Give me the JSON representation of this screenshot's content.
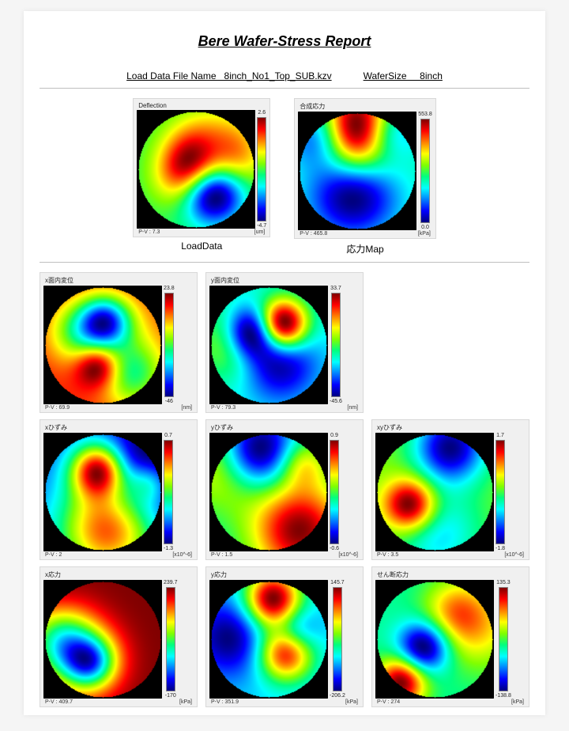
{
  "report_title": "Bere Wafer-Stress Report",
  "meta": {
    "file_label": "Load Data File Name   8inch_No1_Top_SUB.kzv",
    "size_label": "WaferSize     8inch"
  },
  "colormap": {
    "stops": [
      "#000080",
      "#0000ff",
      "#0080ff",
      "#00ffff",
      "#00ff80",
      "#80ff00",
      "#ffff00",
      "#ff8000",
      "#ff0000",
      "#800000"
    ]
  },
  "top": [
    {
      "title": "Deflection",
      "caption": "LoadData",
      "pv": "P-V : 7.3",
      "unit": "[um]",
      "cb_max": "2.6",
      "cb_min": "-4.7",
      "map_size": 150,
      "cb_height": 130,
      "seed": 11
    },
    {
      "title": "合成応力",
      "caption": "応力Map",
      "pv": "P-V : 465.8",
      "unit": "[kPa]",
      "cb_max": "553.8",
      "cb_min": "0.0",
      "map_size": 150,
      "cb_height": 130,
      "seed": 23
    }
  ],
  "grid": [
    {
      "title": "x面内変位",
      "pv": "P-V : 69.9",
      "unit": "[nm]",
      "cb_max": "23.8",
      "cb_min": "-46",
      "seed": 31
    },
    {
      "title": "y面内変位",
      "pv": "P-V : 79.3",
      "unit": "[nm]",
      "cb_max": "33.7",
      "cb_min": "-45.6",
      "seed": 37
    },
    null,
    {
      "title": "xひずみ",
      "pv": "P-V : 2",
      "unit": "[x10^-6]",
      "cb_max": "0.7",
      "cb_min": "-1.3",
      "seed": 41
    },
    {
      "title": "yひずみ",
      "pv": "P-V : 1.5",
      "unit": "[x10^-6]",
      "cb_max": "0.9",
      "cb_min": "-0.6",
      "seed": 43
    },
    {
      "title": "xyひずみ",
      "pv": "P-V : 3.5",
      "unit": "[x10^-6]",
      "cb_max": "1.7",
      "cb_min": "-1.8",
      "seed": 47
    },
    {
      "title": "x応力",
      "pv": "P-V : 409.7",
      "unit": "[kPa]",
      "cb_max": "239.7",
      "cb_min": "-170",
      "seed": 53
    },
    {
      "title": "y応力",
      "pv": "P-V : 351.9",
      "unit": "[kPa]",
      "cb_max": "145.7",
      "cb_min": "-206.2",
      "seed": 59
    },
    {
      "title": "せん断応力",
      "pv": "P-V : 274",
      "unit": "[kPa]",
      "cb_max": "135.3",
      "cb_min": "-138.8",
      "seed": 61
    }
  ],
  "small_map_size": 150,
  "small_cb_height": 130
}
